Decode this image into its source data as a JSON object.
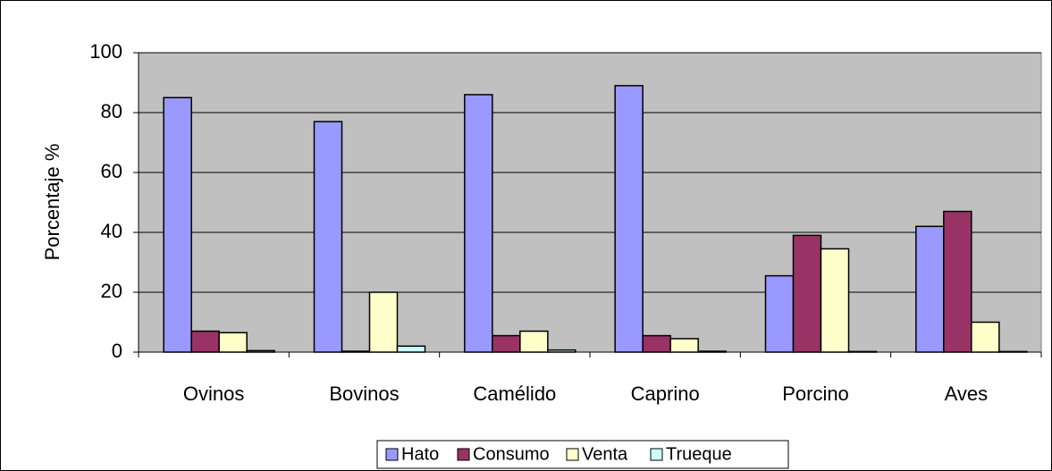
{
  "chart_data": {
    "type": "bar",
    "y_label": "Porcentaje %",
    "categories": [
      "Ovinos",
      "Bovinos",
      "Camélido",
      "Caprino",
      "Porcino",
      "Aves"
    ],
    "series": [
      {
        "name": "Hato",
        "color": "#9999ff",
        "values": [
          85,
          77,
          86,
          89,
          25.5,
          42
        ]
      },
      {
        "name": "Consumo",
        "color": "#993366",
        "values": [
          7,
          0.3,
          5.5,
          5.5,
          39,
          47
        ]
      },
      {
        "name": "Venta",
        "color": "#ffffcc",
        "values": [
          6.5,
          20,
          7,
          4.5,
          34.5,
          10
        ]
      },
      {
        "name": "Trueque",
        "color": "#ccffff",
        "values": [
          0.5,
          2,
          0.7,
          0.3,
          0.2,
          0.2
        ]
      }
    ],
    "ylim": [
      0,
      100
    ],
    "yticks": [
      0,
      20,
      40,
      60,
      80,
      100
    ],
    "grid": true,
    "legend": "bottom"
  }
}
